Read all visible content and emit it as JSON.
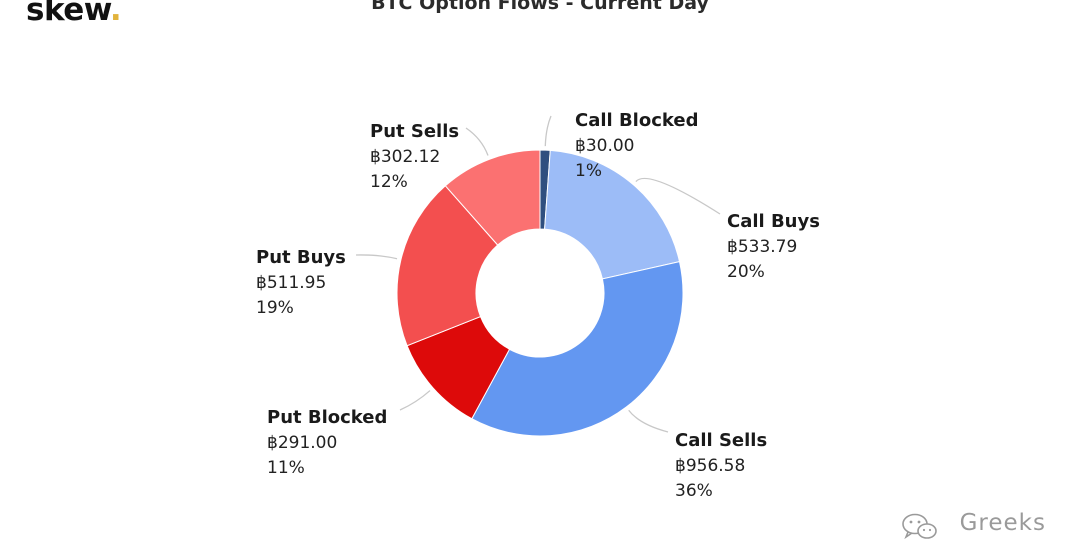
{
  "logo": {
    "text": "skew",
    "dot": "."
  },
  "watermark": {
    "text": "Greeks",
    "icon": "wechat-icon"
  },
  "chart_data": {
    "type": "pie",
    "variant": "donut",
    "title": "BTC Option Flows - Current Day",
    "currency_symbol": "฿",
    "slices": [
      {
        "name": "Call Blocked",
        "value": 30.0,
        "value_label": "฿30.00",
        "percent_label": "1%",
        "color": "#2f4f7f"
      },
      {
        "name": "Call Buys",
        "value": 533.79,
        "value_label": "฿533.79",
        "percent_label": "20%",
        "color": "#9cbcf7"
      },
      {
        "name": "Call Sells",
        "value": 956.58,
        "value_label": "฿956.58",
        "percent_label": "36%",
        "color": "#6397f1"
      },
      {
        "name": "Put Blocked",
        "value": 291.0,
        "value_label": "฿291.00",
        "percent_label": "11%",
        "color": "#dd0a0a"
      },
      {
        "name": "Put Buys",
        "value": 511.95,
        "value_label": "฿511.95",
        "percent_label": "19%",
        "color": "#f34f4f"
      },
      {
        "name": "Put Sells",
        "value": 302.12,
        "value_label": "฿302.12",
        "percent_label": "12%",
        "color": "#fb7171"
      }
    ]
  }
}
